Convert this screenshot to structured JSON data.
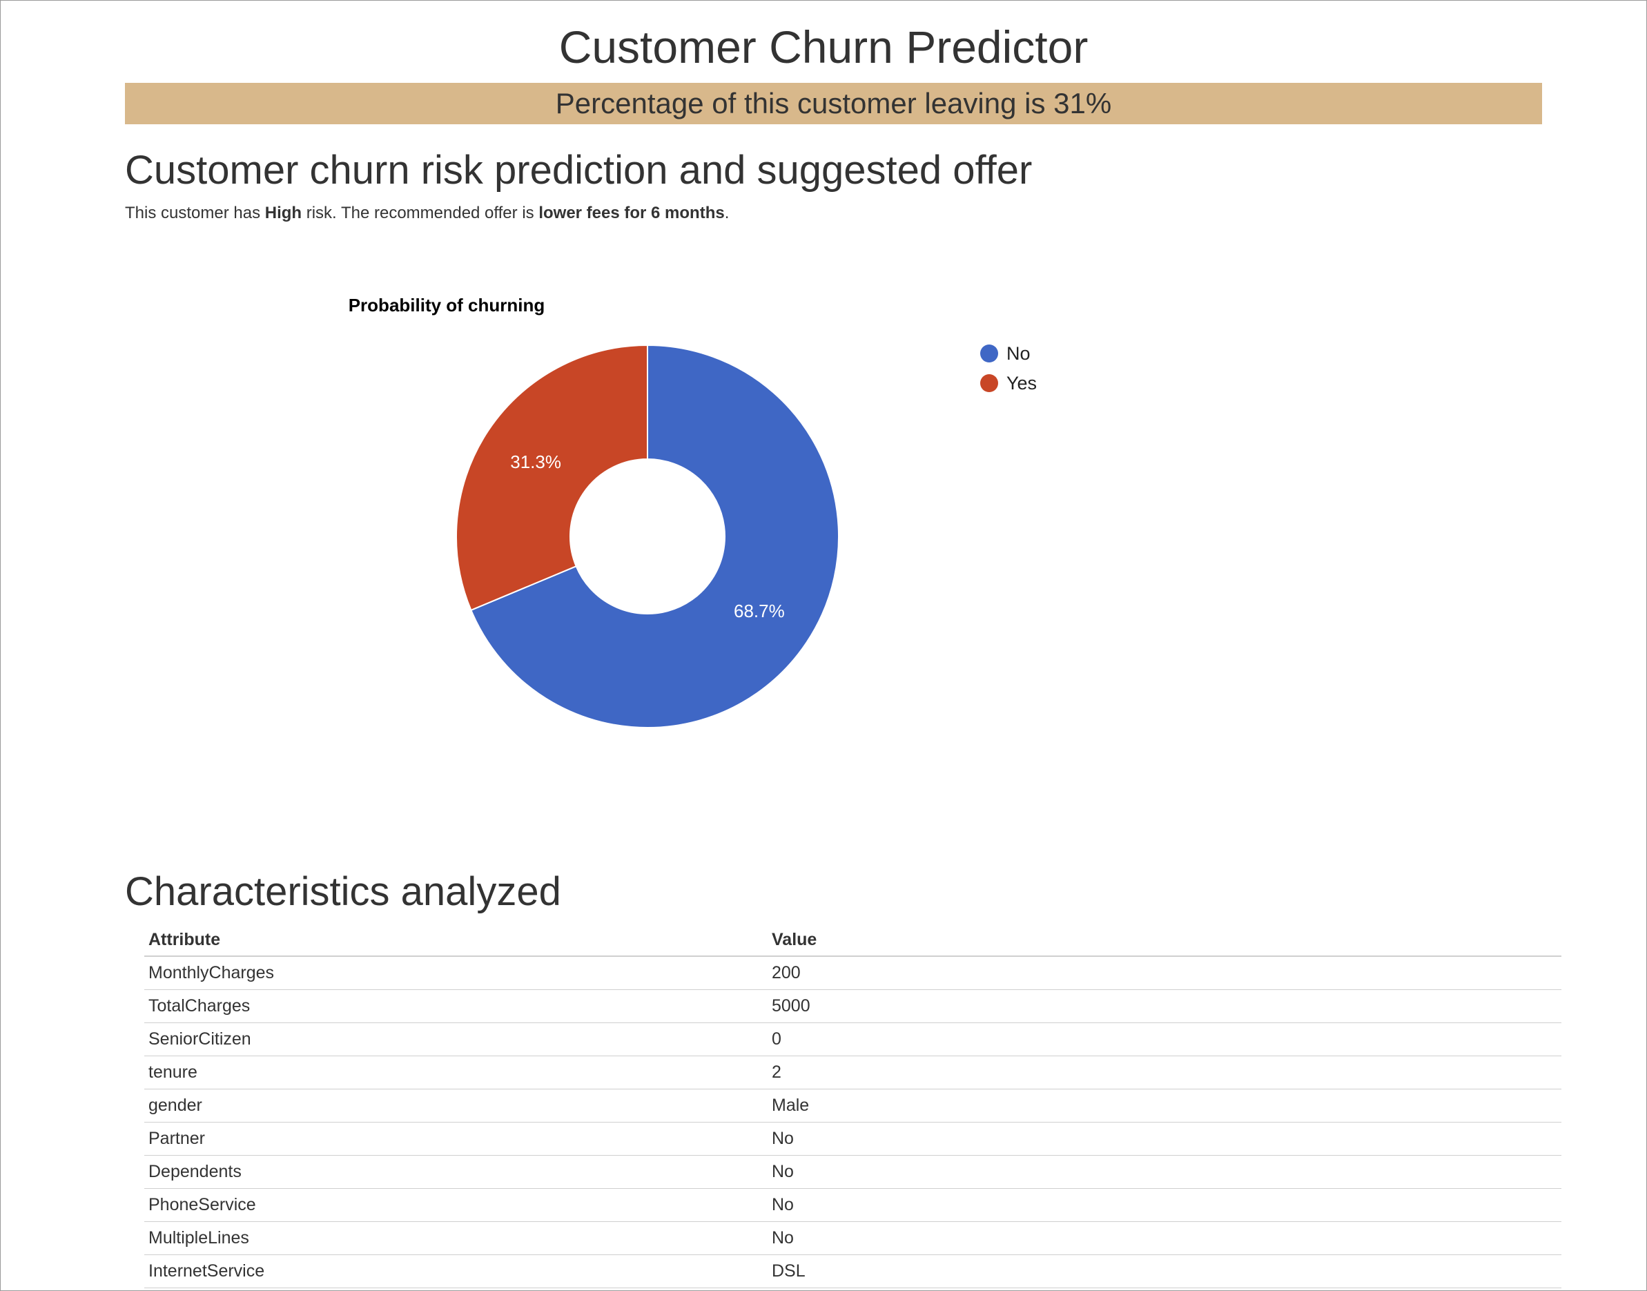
{
  "page": {
    "title": "Customer Churn Predictor",
    "banner": "Percentage of this customer leaving is 31%"
  },
  "prediction": {
    "heading": "Customer churn risk prediction and suggested offer",
    "text_prefix": "This customer has ",
    "risk": "High",
    "text_middle": " risk. The recommended offer is ",
    "offer": "lower fees for 6 months",
    "text_suffix": "."
  },
  "chart_data": {
    "type": "pie",
    "donut": true,
    "title": "Probability of churning",
    "labels": [
      "No",
      "Yes"
    ],
    "values": [
      68.7,
      31.3
    ],
    "value_labels": [
      "68.7%",
      "31.3%"
    ],
    "colors": [
      "#3f67c5",
      "#c84626"
    ],
    "legend_position": "right"
  },
  "characteristics": {
    "heading": "Characteristics analyzed",
    "columns": [
      "Attribute",
      "Value"
    ],
    "rows": [
      [
        "MonthlyCharges",
        "200"
      ],
      [
        "TotalCharges",
        "5000"
      ],
      [
        "SeniorCitizen",
        "0"
      ],
      [
        "tenure",
        "2"
      ],
      [
        "gender",
        "Male"
      ],
      [
        "Partner",
        "No"
      ],
      [
        "Dependents",
        "No"
      ],
      [
        "PhoneService",
        "No"
      ],
      [
        "MultipleLines",
        "No"
      ],
      [
        "InternetService",
        "DSL"
      ]
    ]
  }
}
